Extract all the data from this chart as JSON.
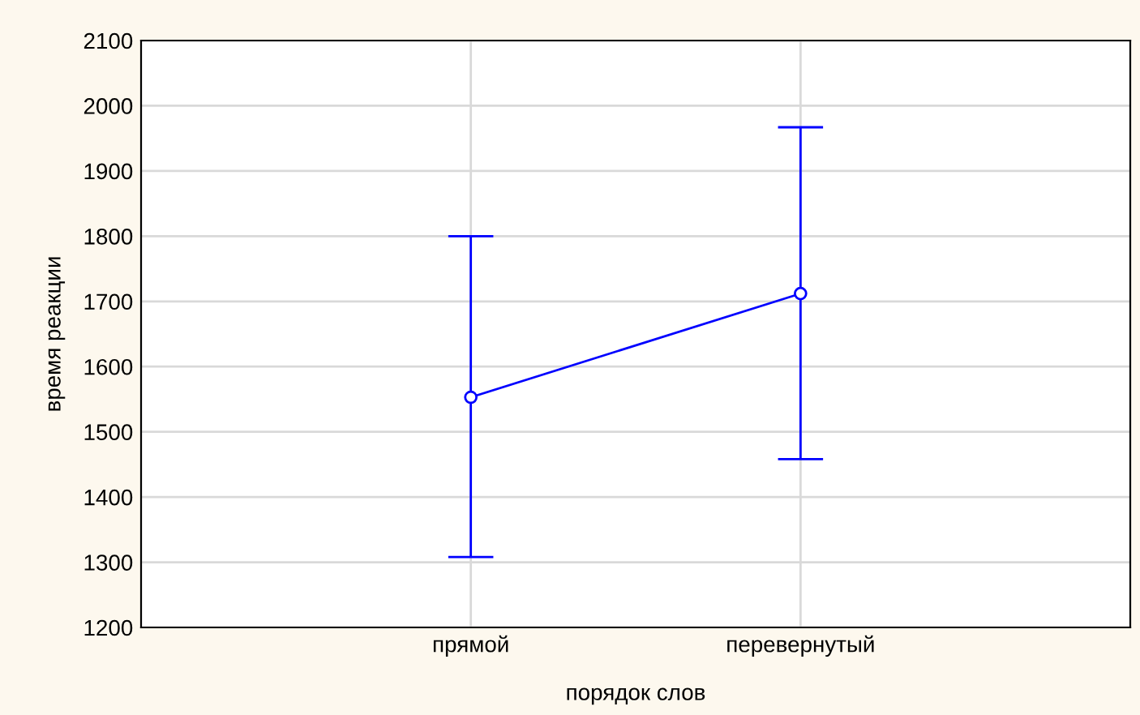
{
  "chart_data": {
    "type": "line",
    "xlabel": "порядок слов",
    "ylabel": "время реакции",
    "categories": [
      "прямой",
      "перевернутый"
    ],
    "series": [
      {
        "color": "#0000ff",
        "values": [
          1553,
          1712
        ],
        "errors": [
          [
            1308,
            1800
          ],
          [
            1458,
            1967
          ]
        ]
      }
    ],
    "ylim": [
      1200,
      2100
    ],
    "yticks": [
      1200,
      1300,
      1400,
      1500,
      1600,
      1700,
      1800,
      1900,
      2000,
      2100
    ],
    "grid": true,
    "marker": "circle",
    "line_style": "solid"
  }
}
